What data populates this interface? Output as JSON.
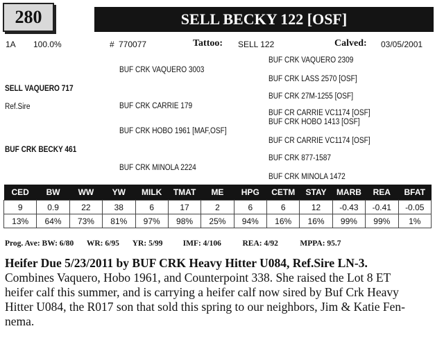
{
  "lot": "280",
  "animal_name": "SELL BECKY 122 [OSF]",
  "info": {
    "id": "1A",
    "percent": "100.0%",
    "reg_prefix": "#",
    "reg_number": "770077",
    "tattoo_label": "Tattoo:",
    "tattoo": "SELL 122",
    "calved_label": "Calved:",
    "calved": "03/05/2001"
  },
  "pedigree": {
    "sire": "SELL VAQUERO 717",
    "ref_sire": "Ref.Sire",
    "dam": "BUF CRK BECKY 461",
    "ss": "BUF CRK VAQUERO 3003",
    "sd": "BUF CRK CARRIE 179",
    "ds": "BUF CRK HOBO 1961 [MAF,OSF]",
    "dd": "BUF CRK MINOLA 2224",
    "sss": "BUF CRK VAQUERO 2309",
    "ssd": "BUF CRK LASS 2570 [OSF]",
    "sds": "BUF CRK 27M-1255 [OSF]",
    "sdd": "BUF CR CARRIE VC1174 [OSF]",
    "dss": "BUF CRK HOBO 1413 [OSF]",
    "dsd": "BUF CR CARRIE VC1174 [OSF]",
    "dds": "BUF CRK 877-1587",
    "ddd": "BUF CRK MINOLA 1472"
  },
  "epd": {
    "headers": [
      "CED",
      "BW",
      "WW",
      "YW",
      "MILK",
      "TMAT",
      "ME",
      "HPG",
      "CETM",
      "STAY",
      "MARB",
      "REA",
      "BFAT"
    ],
    "values": [
      "9",
      "0.9",
      "22",
      "38",
      "6",
      "17",
      "2",
      "6",
      "6",
      "12",
      "-0.43",
      "-0.41",
      "-0.05"
    ],
    "percentiles": [
      "13%",
      "64%",
      "73%",
      "81%",
      "97%",
      "98%",
      "25%",
      "94%",
      "16%",
      "16%",
      "99%",
      "99%",
      "1%"
    ]
  },
  "progeny": {
    "bw": "Prog. Ave: BW: 6/80",
    "wr": "WR: 6/95",
    "yr": "YR: 5/99",
    "imf": "IMF: 4/106",
    "rea": "REA: 4/92",
    "mppa": "MPPA: 95.7"
  },
  "comment": {
    "headline": "Heifer Due 5/23/2011 by BUF CRK Heavy Hitter U084, Ref.Sire LN-3.",
    "lines": [
      "Combines Vaquero, Hobo 1961, and Counterpoint 338.  She raised the Lot 8 ET",
      "heifer calf this summer, and is carrying a heifer calf now sired by Buf Crk Heavy",
      "Hitter U084, the R017 son that sold this spring to our neighbors, Jim & Katie Fen-",
      "nema."
    ]
  }
}
